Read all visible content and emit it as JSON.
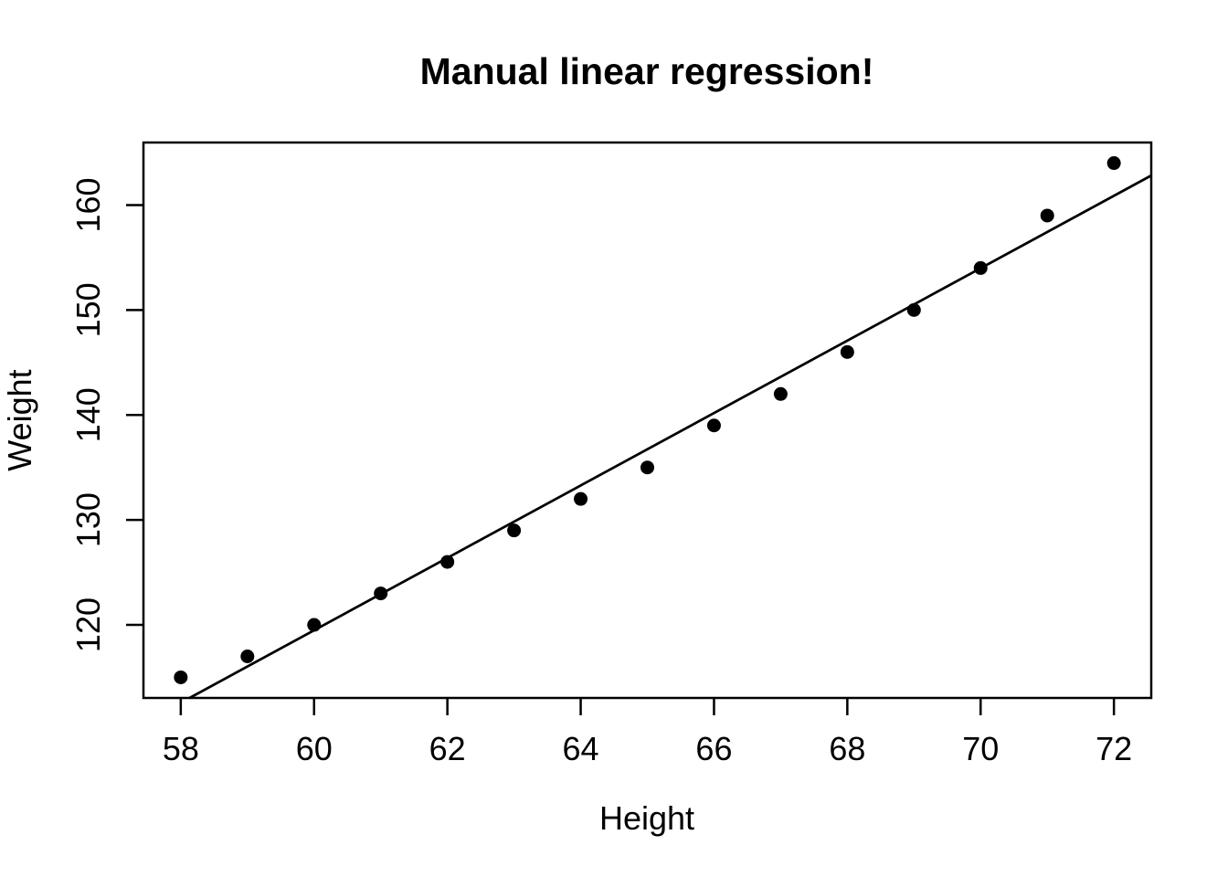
{
  "chart_data": {
    "type": "scatter",
    "title": "Manual linear regression!",
    "xlabel": "Height",
    "ylabel": "Weight",
    "x": [
      58,
      59,
      60,
      61,
      62,
      63,
      64,
      65,
      66,
      67,
      68,
      69,
      70,
      71,
      72
    ],
    "y": [
      115,
      117,
      120,
      123,
      126,
      129,
      132,
      135,
      139,
      142,
      146,
      150,
      154,
      159,
      164
    ],
    "xlim": [
      57.44,
      72.56
    ],
    "ylim": [
      113.04,
      165.96
    ],
    "xticks": [
      58,
      60,
      62,
      64,
      66,
      68,
      70,
      72
    ],
    "yticks": [
      120,
      130,
      140,
      150,
      160
    ],
    "regression_line": {
      "intercept": -87.51667,
      "slope": 3.45
    },
    "legend": null,
    "grid": false,
    "point_color": "#000000",
    "line_color": "#000000",
    "axis_color": "#000000",
    "background": "#ffffff"
  }
}
